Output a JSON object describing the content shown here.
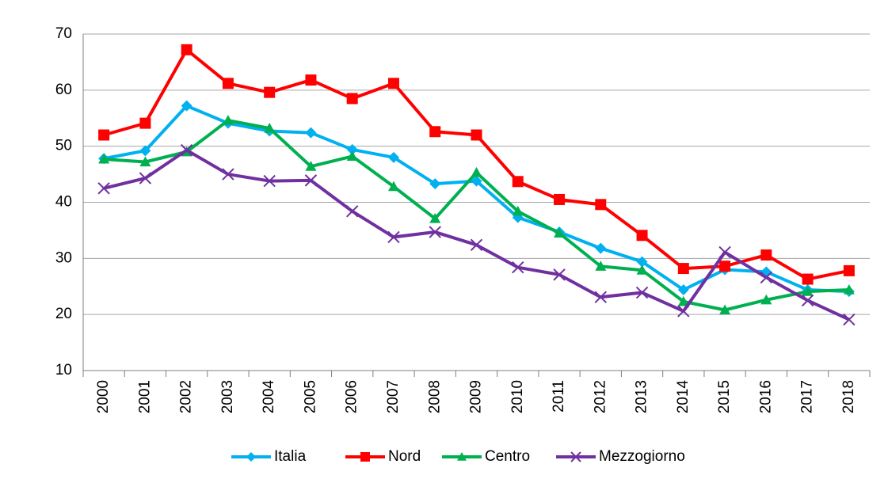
{
  "chart_data": {
    "type": "line",
    "categories": [
      "2000",
      "2001",
      "2002",
      "2003",
      "2004",
      "2005",
      "2006",
      "2007",
      "2008",
      "2009",
      "2010",
      "2011",
      "2012",
      "2013",
      "2014",
      "2015",
      "2016",
      "2017",
      "2018"
    ],
    "series": [
      {
        "name": "Italia",
        "color": "#00b0f0",
        "marker": "diamond",
        "values": [
          47.8,
          49.2,
          57.2,
          54.1,
          52.7,
          52.4,
          49.4,
          48.0,
          43.3,
          43.8,
          37.3,
          34.7,
          31.8,
          29.4,
          24.4,
          28.0,
          27.6,
          24.4,
          24.1
        ]
      },
      {
        "name": "Nord",
        "color": "#ff0000",
        "marker": "square",
        "values": [
          52.0,
          54.1,
          67.2,
          61.2,
          59.6,
          61.8,
          58.5,
          61.2,
          52.6,
          52.0,
          43.7,
          40.5,
          39.6,
          34.1,
          28.2,
          28.6,
          30.6,
          26.3,
          27.8
        ]
      },
      {
        "name": "Centro",
        "color": "#00b050",
        "marker": "triangle",
        "values": [
          47.7,
          47.2,
          49.0,
          54.6,
          53.2,
          46.4,
          48.2,
          42.8,
          37.1,
          45.3,
          38.4,
          34.5,
          28.6,
          27.9,
          22.3,
          20.8,
          22.6,
          24.1,
          24.4
        ]
      },
      {
        "name": "Mezzogiorno",
        "color": "#7030a0",
        "marker": "x",
        "values": [
          42.5,
          44.3,
          49.3,
          45.0,
          43.8,
          43.9,
          38.4,
          33.8,
          34.7,
          32.4,
          28.4,
          27.1,
          23.1,
          23.9,
          20.6,
          31.1,
          26.6,
          22.5,
          19.1
        ]
      }
    ],
    "ylim": [
      10,
      70
    ],
    "yticks": [
      10,
      20,
      30,
      40,
      50,
      60,
      70
    ],
    "grid": true,
    "legend": "bottom"
  }
}
